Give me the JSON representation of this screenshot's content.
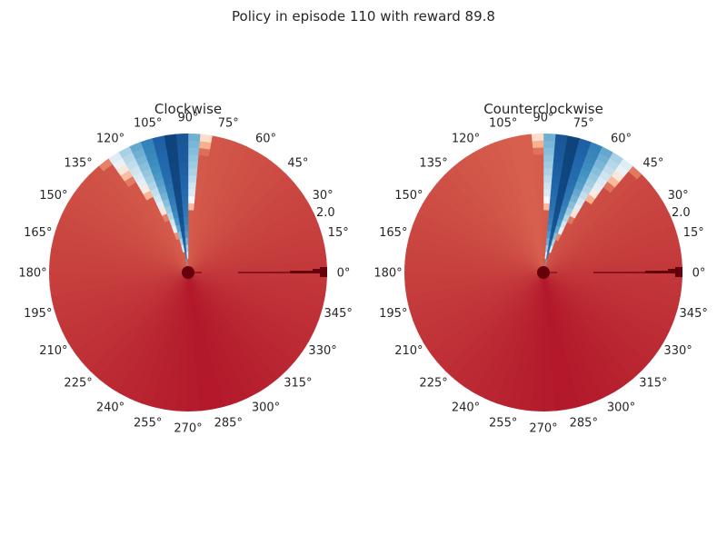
{
  "figure": {
    "suptitle": "Policy in episode 110 with reward 89.8"
  },
  "colors": {
    "text": "#262626",
    "marker": "#67000d",
    "colormap": "RdBu_r"
  },
  "chart_data": [
    {
      "type": "heatmap",
      "projection": "polar",
      "title": "Clockwise",
      "theta_tick_labels": [
        "0°",
        "15°",
        "30°",
        "45°",
        "60°",
        "75°",
        "90°",
        "105°",
        "120°",
        "135°",
        "150°",
        "165°",
        "180°",
        "195°",
        "210°",
        "225°",
        "240°",
        "255°",
        "270°",
        "285°",
        "300°",
        "315°",
        "330°",
        "345°"
      ],
      "r_tick_labels": [
        "2.0"
      ],
      "rlim": [
        0,
        2.0
      ],
      "grid": false,
      "colormap": "RdBu_r",
      "blue_wedge_deg": [
        85,
        125
      ],
      "blue_core_deg": 95,
      "darkest_red_deg": 280
    },
    {
      "type": "heatmap",
      "projection": "polar",
      "title": "Counterclockwise",
      "theta_tick_labels": [
        "0°",
        "15°",
        "30°",
        "45°",
        "60°",
        "75°",
        "90°",
        "105°",
        "120°",
        "135°",
        "150°",
        "165°",
        "180°",
        "195°",
        "210°",
        "225°",
        "240°",
        "255°",
        "270°",
        "285°",
        "300°",
        "315°",
        "330°",
        "345°"
      ],
      "r_tick_labels": [
        "2.0"
      ],
      "rlim": [
        0,
        2.0
      ],
      "grid": false,
      "colormap": "RdBu_r",
      "blue_wedge_deg": [
        50,
        90
      ],
      "blue_core_deg": 80,
      "darkest_red_deg": 280
    }
  ]
}
